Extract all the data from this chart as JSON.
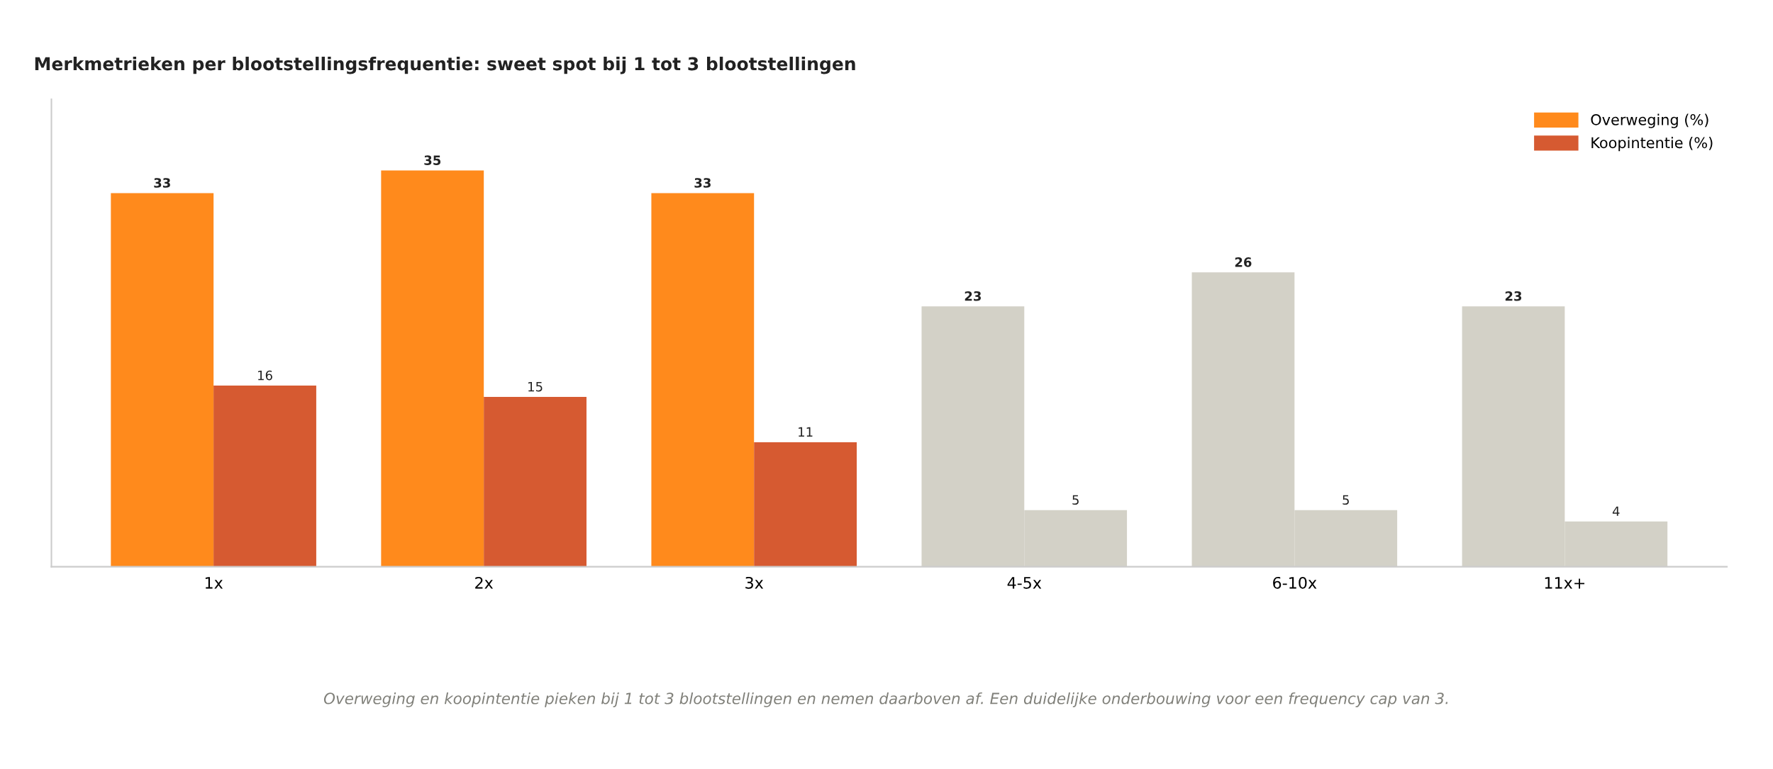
{
  "chart_data": {
    "type": "bar",
    "title": "Merkmetrieken per blootstellingsfrequentie: sweet spot bij 1 tot 3 blootstellingen",
    "categories": [
      "1x",
      "2x",
      "3x",
      "4-5x",
      "6-10x",
      "11x+"
    ],
    "series": [
      {
        "name": "Overweging (%)",
        "color": "#ff8a1c",
        "colors": [
          "#ff8a1c",
          "#ff8a1c",
          "#ff8a1c",
          "#d3d1c7",
          "#d3d1c7",
          "#d3d1c7"
        ],
        "values": [
          33,
          35,
          33,
          23,
          26,
          23
        ]
      },
      {
        "name": "Koopintentie (%)",
        "color": "#d65a31",
        "colors": [
          "#d65a31",
          "#d65a31",
          "#d65a31",
          "#d3d1c7",
          "#d3d1c7",
          "#d3d1c7"
        ],
        "values": [
          16,
          15,
          11,
          5,
          5,
          4
        ]
      }
    ],
    "data_labels": true,
    "grid": false,
    "legend": "top right",
    "tick_labels": "x",
    "annotations": [
      "Overweging en koopintentie pieken bij 1 tot 3 blootstellingen en nemen daarboven af. Een duidelijke onderbouwing voor een frequency cap van 3."
    ]
  }
}
